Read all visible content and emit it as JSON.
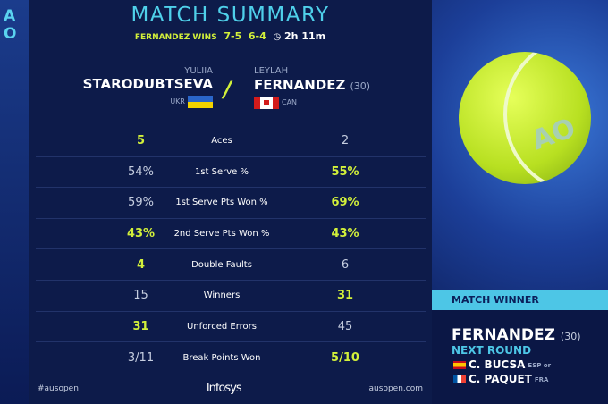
{
  "logo": "AO",
  "header": {
    "title": "MATCH SUMMARY",
    "result": "FERNANDEZ WINS",
    "sets": [
      "7-5",
      "6-4"
    ],
    "duration": "2h 11m"
  },
  "players": {
    "left": {
      "first": "YULIIA",
      "last": "STARODUBTSEVA",
      "country": "UKR"
    },
    "right": {
      "first": "LEYLAH",
      "last": "FERNANDEZ",
      "seed": "(30)",
      "country": "CAN"
    }
  },
  "stats": [
    {
      "label": "Aces",
      "left": "5",
      "right": "2",
      "highlight": "left"
    },
    {
      "label": "1st Serve %",
      "left": "54%",
      "right": "55%",
      "highlight": "right"
    },
    {
      "label": "1st Serve Pts Won %",
      "left": "59%",
      "right": "69%",
      "highlight": "right"
    },
    {
      "label": "2nd Serve Pts Won %",
      "left": "43%",
      "right": "43%",
      "highlight": "both"
    },
    {
      "label": "Double Faults",
      "left": "4",
      "right": "6",
      "highlight": "left"
    },
    {
      "label": "Winners",
      "left": "15",
      "right": "31",
      "highlight": "right"
    },
    {
      "label": "Unforced Errors",
      "left": "31",
      "right": "45",
      "highlight": "left"
    },
    {
      "label": "Break Points Won",
      "left": "3/11",
      "right": "5/10",
      "highlight": "right"
    }
  ],
  "footer": {
    "hashtag": "#ausopen",
    "sponsor": "Infosys",
    "site": "ausopen.com"
  },
  "winner": {
    "heading": "MATCH WINNER",
    "name": "FERNANDEZ",
    "seed": "(30)",
    "next_round": "NEXT ROUND",
    "opponents": [
      {
        "name": "C. BUCSA",
        "country": "ESP or"
      },
      {
        "name": "C. PAQUET",
        "country": "FRA"
      }
    ]
  },
  "colors": {
    "accent": "#d2f03a",
    "cyan": "#4dc6e6",
    "navy": "#0d1b4a"
  }
}
